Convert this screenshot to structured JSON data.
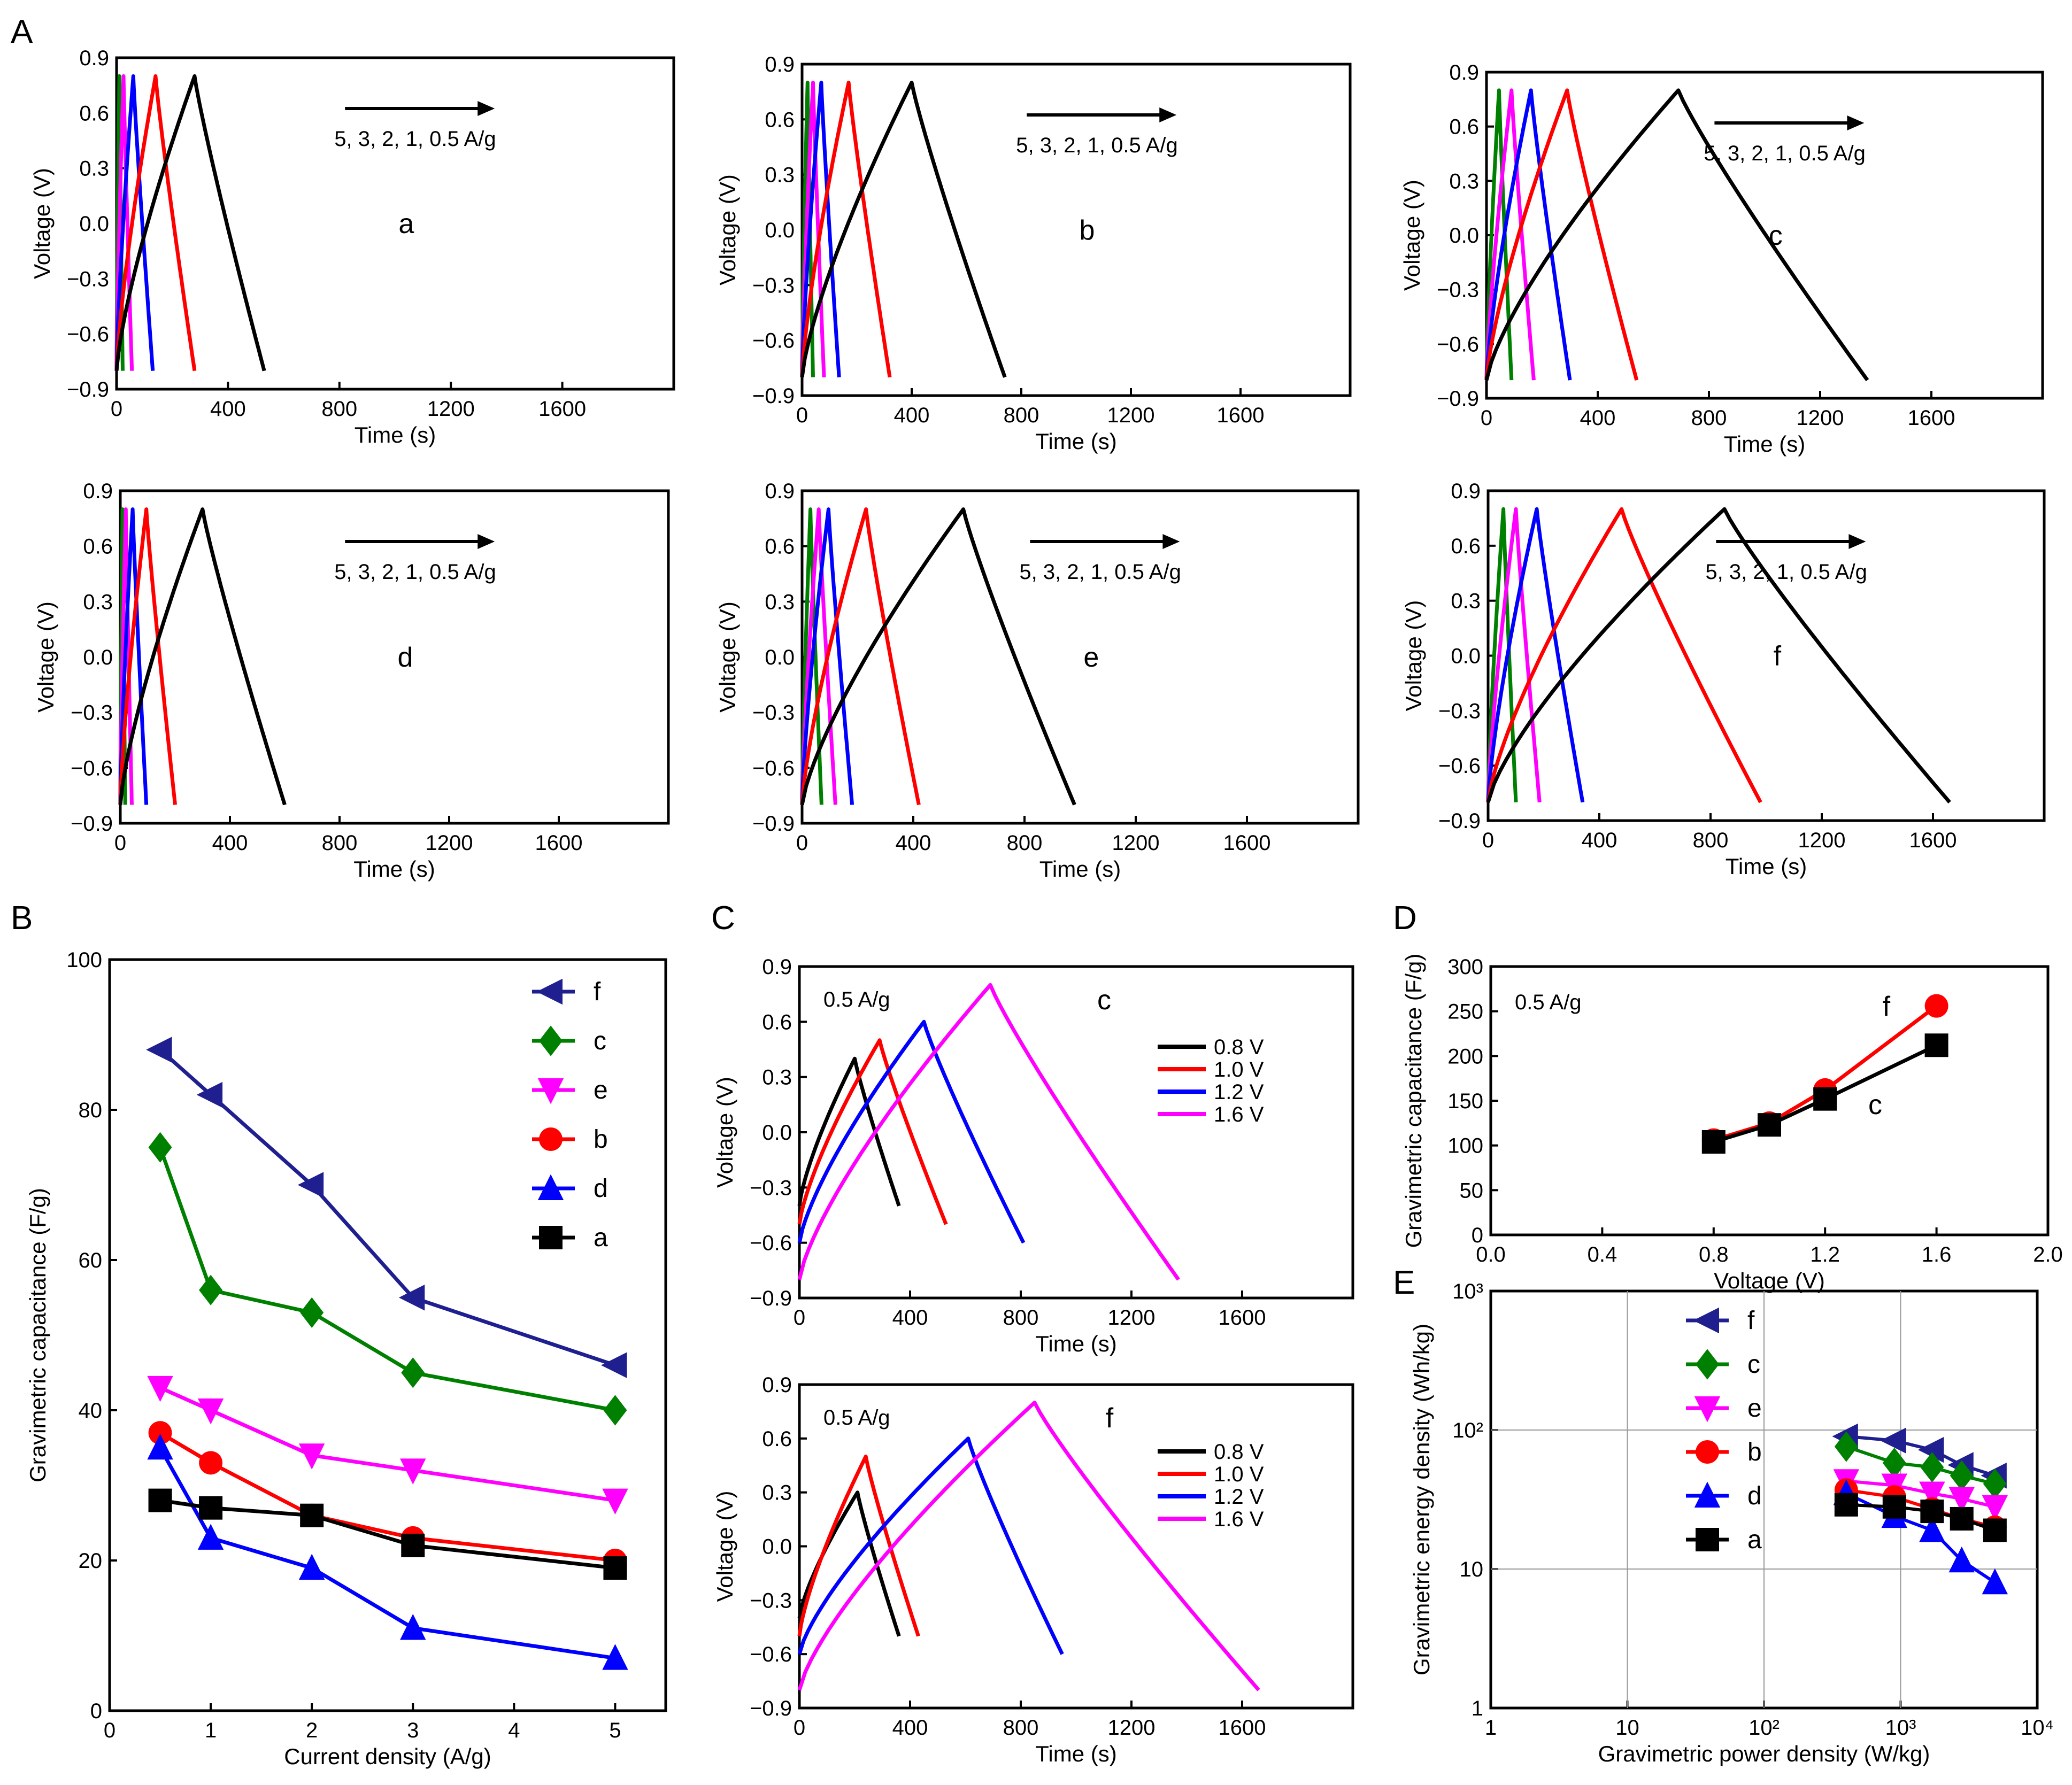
{
  "figure": {
    "panel_labels": {
      "A": "A",
      "B": "B",
      "C": "C",
      "D": "D",
      "E": "E"
    }
  },
  "colors": {
    "5": "#0070c0",
    "3": "#00b0f0",
    "black": "#000000",
    "red": "#ff0000",
    "blue": "#0000ff",
    "green": "#008000",
    "magenta": "#ff00ff",
    "navy": "#1f1f8f",
    "rate_3": "#008000",
    "rate_2": "#ff00ff",
    "rate_1": "#0000ff",
    "rate_05": "#ff0000",
    "rate_5": "#000000"
  },
  "chart_data": [
    {
      "id": "A-a",
      "type": "line",
      "title": "a",
      "xlabel": "Time (s)",
      "ylabel": "Voltage (V)",
      "xlim": [
        0,
        2000
      ],
      "ylim": [
        -0.9,
        0.9
      ],
      "xticks": [
        "0",
        "400",
        "800",
        "1200",
        "1600"
      ],
      "yticks": [
        "0.9",
        "0.6",
        "0.3",
        "0.0",
        "−0.3",
        "−0.6",
        "−0.9"
      ],
      "annotation": "5, 3, 2, 1, 0.5 A/g",
      "series": [
        {
          "name": "5 A/g",
          "color": "#008000",
          "y0": -0.8,
          "peak_t": 10,
          "end_t": 22,
          "end_v": -0.8
        },
        {
          "name": "3 A/g",
          "color": "#ff00ff",
          "y0": -0.8,
          "peak_t": 25,
          "end_t": 55,
          "end_v": -0.8
        },
        {
          "name": "2 A/g",
          "color": "#0000ff",
          "y0": -0.8,
          "peak_t": 60,
          "end_t": 130,
          "end_v": -0.8
        },
        {
          "name": "1 A/g",
          "color": "#ff0000",
          "y0": -0.8,
          "peak_t": 140,
          "end_t": 280,
          "end_v": -0.8
        },
        {
          "name": "0.5 A/g",
          "color": "#000000",
          "y0": -0.8,
          "peak_t": 280,
          "end_t": 530,
          "end_v": -0.8
        }
      ]
    },
    {
      "id": "A-b",
      "type": "line",
      "title": "b",
      "xlabel": "Time (s)",
      "ylabel": "Voltage (V)",
      "xlim": [
        0,
        2000
      ],
      "ylim": [
        -0.9,
        0.9
      ],
      "xticks": [
        "0",
        "400",
        "800",
        "1200",
        "1600"
      ],
      "yticks": [
        "0.9",
        "0.6",
        "0.3",
        "0.0",
        "−0.3",
        "−0.6",
        "−0.9"
      ],
      "annotation": "5, 3, 2, 1, 0.5 A/g",
      "series": [
        {
          "name": "5 A/g",
          "color": "#008000",
          "y0": -0.8,
          "peak_t": 20,
          "end_t": 40,
          "end_v": -0.8
        },
        {
          "name": "3 A/g",
          "color": "#ff00ff",
          "y0": -0.8,
          "peak_t": 40,
          "end_t": 80,
          "end_v": -0.8
        },
        {
          "name": "2 A/g",
          "color": "#0000ff",
          "y0": -0.8,
          "peak_t": 70,
          "end_t": 135,
          "end_v": -0.8
        },
        {
          "name": "1 A/g",
          "color": "#ff0000",
          "y0": -0.8,
          "peak_t": 170,
          "end_t": 320,
          "end_v": -0.8
        },
        {
          "name": "0.5 A/g",
          "color": "#000000",
          "y0": -0.8,
          "peak_t": 400,
          "end_t": 740,
          "end_v": -0.8
        }
      ]
    },
    {
      "id": "A-c",
      "type": "line",
      "title": "c",
      "xlabel": "Time (s)",
      "ylabel": "Voltage (V)",
      "xlim": [
        0,
        2000
      ],
      "ylim": [
        -0.9,
        0.9
      ],
      "xticks": [
        "0",
        "400",
        "800",
        "1200",
        "1600"
      ],
      "yticks": [
        "0.9",
        "0.6",
        "0.3",
        "0.0",
        "−0.3",
        "−0.6",
        "−0.9"
      ],
      "annotation": "5, 3, 2, 1, 0.5 A/g",
      "series": [
        {
          "name": "5 A/g",
          "color": "#008000",
          "y0": -0.8,
          "peak_t": 45,
          "end_t": 90,
          "end_v": -0.8
        },
        {
          "name": "3 A/g",
          "color": "#ff00ff",
          "y0": -0.8,
          "peak_t": 90,
          "end_t": 170,
          "end_v": -0.8
        },
        {
          "name": "2 A/g",
          "color": "#0000ff",
          "y0": -0.8,
          "peak_t": 160,
          "end_t": 300,
          "end_v": -0.8
        },
        {
          "name": "1 A/g",
          "color": "#ff0000",
          "y0": -0.8,
          "peak_t": 290,
          "end_t": 540,
          "end_v": -0.8
        },
        {
          "name": "0.5 A/g",
          "color": "#000000",
          "y0": -0.8,
          "peak_t": 690,
          "end_t": 1370,
          "end_v": -0.8
        }
      ]
    },
    {
      "id": "A-d",
      "type": "line",
      "title": "d",
      "xlabel": "Time (s)",
      "ylabel": "Voltage (V)",
      "xlim": [
        0,
        2000
      ],
      "ylim": [
        -0.9,
        0.9
      ],
      "xticks": [
        "0",
        "400",
        "800",
        "1200",
        "1600"
      ],
      "yticks": [
        "0.9",
        "0.6",
        "0.3",
        "0.0",
        "−0.3",
        "−0.6",
        "−0.9"
      ],
      "annotation": "5, 3, 2, 1, 0.5 A/g",
      "series": [
        {
          "name": "5 A/g",
          "color": "#008000",
          "y0": -0.8,
          "peak_t": 8,
          "end_t": 18,
          "end_v": -0.8
        },
        {
          "name": "3 A/g",
          "color": "#ff00ff",
          "y0": -0.8,
          "peak_t": 20,
          "end_t": 42,
          "end_v": -0.8
        },
        {
          "name": "2 A/g",
          "color": "#0000ff",
          "y0": -0.8,
          "peak_t": 45,
          "end_t": 95,
          "end_v": -0.8
        },
        {
          "name": "1 A/g",
          "color": "#ff0000",
          "y0": -0.8,
          "peak_t": 95,
          "end_t": 200,
          "end_v": -0.8
        },
        {
          "name": "0.5 A/g",
          "color": "#000000",
          "y0": -0.8,
          "peak_t": 300,
          "end_t": 600,
          "end_v": -0.8
        }
      ]
    },
    {
      "id": "A-e",
      "type": "line",
      "title": "e",
      "xlabel": "Time (s)",
      "ylabel": "Voltage (V)",
      "xlim": [
        0,
        2000
      ],
      "ylim": [
        -0.9,
        0.9
      ],
      "xticks": [
        "0",
        "400",
        "800",
        "1200",
        "1600"
      ],
      "yticks": [
        "0.9",
        "0.6",
        "0.3",
        "0.0",
        "−0.3",
        "−0.6",
        "−0.9"
      ],
      "annotation": "5, 3, 2, 1, 0.5 A/g",
      "series": [
        {
          "name": "5 A/g",
          "color": "#008000",
          "y0": -0.8,
          "peak_t": 30,
          "end_t": 70,
          "end_v": -0.8
        },
        {
          "name": "3 A/g",
          "color": "#ff00ff",
          "y0": -0.8,
          "peak_t": 60,
          "end_t": 120,
          "end_v": -0.8
        },
        {
          "name": "2 A/g",
          "color": "#0000ff",
          "y0": -0.8,
          "peak_t": 95,
          "end_t": 180,
          "end_v": -0.8
        },
        {
          "name": "1 A/g",
          "color": "#ff0000",
          "y0": -0.8,
          "peak_t": 230,
          "end_t": 420,
          "end_v": -0.8
        },
        {
          "name": "0.5 A/g",
          "color": "#000000",
          "y0": -0.8,
          "peak_t": 580,
          "end_t": 980,
          "end_v": -0.8
        }
      ]
    },
    {
      "id": "A-f",
      "type": "line",
      "title": "f",
      "xlabel": "Time (s)",
      "ylabel": "Voltage (V)",
      "xlim": [
        0,
        2000
      ],
      "ylim": [
        -0.9,
        0.9
      ],
      "xticks": [
        "0",
        "400",
        "800",
        "1200",
        "1600"
      ],
      "yticks": [
        "0.9",
        "0.6",
        "0.3",
        "0.0",
        "−0.3",
        "−0.6",
        "−0.9"
      ],
      "annotation": "5, 3, 2, 1, 0.5 A/g",
      "series": [
        {
          "name": "5 A/g",
          "color": "#008000",
          "y0": -0.8,
          "peak_t": 55,
          "end_t": 100,
          "end_v": -0.8
        },
        {
          "name": "3 A/g",
          "color": "#ff00ff",
          "y0": -0.8,
          "peak_t": 100,
          "end_t": 185,
          "end_v": -0.8
        },
        {
          "name": "2 A/g",
          "color": "#0000ff",
          "y0": -0.8,
          "peak_t": 175,
          "end_t": 340,
          "end_v": -0.8
        },
        {
          "name": "1 A/g",
          "color": "#ff0000",
          "y0": -0.8,
          "peak_t": 480,
          "end_t": 980,
          "end_v": -0.8
        },
        {
          "name": "0.5 A/g",
          "color": "#000000",
          "y0": -0.8,
          "peak_t": 850,
          "end_t": 1660,
          "end_v": -0.8
        }
      ]
    },
    {
      "id": "B",
      "type": "line",
      "xlabel": "Current density (A/g)",
      "ylabel": "Gravimetric capacitance (F/g)",
      "xlim": [
        0,
        5.5
      ],
      "ylim": [
        0,
        100
      ],
      "xticks": [
        "0",
        "1",
        "2",
        "3",
        "4",
        "5"
      ],
      "yticks": [
        "100",
        "80",
        "60",
        "40",
        "20",
        "0"
      ],
      "x": [
        0.5,
        1,
        2,
        3,
        5
      ],
      "series": [
        {
          "name": "f",
          "color": "#1f1f8f",
          "marker": "triangle-left",
          "values": [
            88,
            82,
            70,
            55,
            46
          ]
        },
        {
          "name": "c",
          "color": "#008000",
          "marker": "diamond",
          "values": [
            75,
            56,
            53,
            45,
            40
          ]
        },
        {
          "name": "e",
          "color": "#ff00ff",
          "marker": "triangle-down",
          "values": [
            43,
            40,
            34,
            32,
            28
          ]
        },
        {
          "name": "b",
          "color": "#ff0000",
          "marker": "circle",
          "values": [
            37,
            33,
            26,
            23,
            20
          ]
        },
        {
          "name": "d",
          "color": "#0000ff",
          "marker": "triangle-up",
          "values": [
            35,
            23,
            19,
            11,
            7
          ]
        },
        {
          "name": "a",
          "color": "#000000",
          "marker": "square",
          "values": [
            28,
            27,
            26,
            22,
            19
          ]
        }
      ]
    },
    {
      "id": "C-c",
      "type": "line",
      "title": "c",
      "note": "0.5 A/g",
      "xlabel": "Time (s)",
      "ylabel": "Voltage (V)",
      "xlim": [
        0,
        2000
      ],
      "ylim": [
        -0.9,
        0.9
      ],
      "xticks": [
        "0",
        "400",
        "800",
        "1200",
        "1600"
      ],
      "yticks": [
        "0.9",
        "0.6",
        "0.3",
        "0.0",
        "−0.3",
        "−0.6",
        "−0.9"
      ],
      "series": [
        {
          "name": "0.8 V",
          "color": "#000000",
          "y0": -0.4,
          "peak_v": 0.4,
          "peak_t": 200,
          "end_t": 360,
          "end_v": -0.4
        },
        {
          "name": "1.0 V",
          "color": "#ff0000",
          "y0": -0.5,
          "peak_v": 0.5,
          "peak_t": 290,
          "end_t": 530,
          "end_v": -0.5
        },
        {
          "name": "1.2 V",
          "color": "#0000ff",
          "y0": -0.6,
          "peak_v": 0.6,
          "peak_t": 450,
          "end_t": 810,
          "end_v": -0.6
        },
        {
          "name": "1.6 V",
          "color": "#ff00ff",
          "y0": -0.8,
          "peak_v": 0.8,
          "peak_t": 690,
          "end_t": 1370,
          "end_v": -0.8
        }
      ]
    },
    {
      "id": "C-f",
      "type": "line",
      "title": "f",
      "note": "0.5 A/g",
      "xlabel": "Time (s)",
      "ylabel": "Voltage (V)",
      "xlim": [
        0,
        2000
      ],
      "ylim": [
        -0.9,
        0.9
      ],
      "xticks": [
        "0",
        "400",
        "800",
        "1200",
        "1600"
      ],
      "yticks": [
        "0.9",
        "0.6",
        "0.3",
        "0.0",
        "−0.3",
        "−0.6",
        "−0.9"
      ],
      "series": [
        {
          "name": "0.8 V",
          "color": "#000000",
          "y0": -0.4,
          "peak_v": 0.3,
          "peak_t": 210,
          "end_t": 360,
          "end_v": -0.5
        },
        {
          "name": "1.0 V",
          "color": "#ff0000",
          "y0": -0.5,
          "peak_v": 0.5,
          "peak_t": 240,
          "end_t": 430,
          "end_v": -0.5
        },
        {
          "name": "1.2 V",
          "color": "#0000ff",
          "y0": -0.6,
          "peak_v": 0.6,
          "peak_t": 610,
          "end_t": 950,
          "end_v": -0.6
        },
        {
          "name": "1.6 V",
          "color": "#ff00ff",
          "y0": -0.8,
          "peak_v": 0.8,
          "peak_t": 850,
          "end_t": 1660,
          "end_v": -0.8
        }
      ]
    },
    {
      "id": "D",
      "type": "line",
      "note": "0.5 A/g",
      "xlabel": "Voltage (V)",
      "ylabel": "Gravimetric capacitance (F/g)",
      "xlim": [
        0,
        2.0
      ],
      "ylim": [
        0,
        300
      ],
      "xticks": [
        "0.0",
        "0.4",
        "0.8",
        "1.2",
        "1.6",
        "2.0"
      ],
      "yticks": [
        "300",
        "250",
        "200",
        "150",
        "100",
        "50",
        "0"
      ],
      "x": [
        0.8,
        1.0,
        1.2,
        1.6
      ],
      "series": [
        {
          "name": "f",
          "color": "#ff0000",
          "marker": "circle",
          "values": [
            106,
            125,
            162,
            256
          ]
        },
        {
          "name": "c",
          "color": "#000000",
          "marker": "square",
          "values": [
            104,
            123,
            152,
            212
          ]
        }
      ]
    },
    {
      "id": "E",
      "type": "scatter",
      "xlabel": "Gravimetric power density (W/kg)",
      "ylabel": "Gravimetric energy density (Wh/kg)",
      "xscale": "log",
      "yscale": "log",
      "xlim": [
        1,
        10000
      ],
      "ylim": [
        1,
        1000
      ],
      "xticks": [
        "1",
        "10",
        "10²",
        "10³",
        "10⁴"
      ],
      "yticks": [
        "10³",
        "10²",
        "10",
        "1"
      ],
      "series": [
        {
          "name": "f",
          "color": "#1f1f8f",
          "marker": "triangle-left",
          "points": [
            [
              400,
              90
            ],
            [
              900,
              84
            ],
            [
              1700,
              72
            ],
            [
              2800,
              56
            ],
            [
              4900,
              47
            ]
          ]
        },
        {
          "name": "c",
          "color": "#008000",
          "marker": "diamond",
          "points": [
            [
              400,
              76
            ],
            [
              900,
              58
            ],
            [
              1700,
              54
            ],
            [
              2800,
              47
            ],
            [
              4900,
              41
            ]
          ]
        },
        {
          "name": "e",
          "color": "#ff00ff",
          "marker": "triangle-down",
          "points": [
            [
              400,
              43
            ],
            [
              900,
              40
            ],
            [
              1700,
              35
            ],
            [
              2800,
              32
            ],
            [
              4900,
              28
            ]
          ]
        },
        {
          "name": "b",
          "color": "#ff0000",
          "marker": "circle",
          "points": [
            [
              400,
              37
            ],
            [
              900,
              33
            ],
            [
              1700,
              27
            ],
            [
              2800,
              23
            ],
            [
              4900,
              20
            ]
          ]
        },
        {
          "name": "d",
          "color": "#0000ff",
          "marker": "triangle-up",
          "points": [
            [
              400,
              35
            ],
            [
              900,
              24
            ],
            [
              1700,
              19
            ],
            [
              2800,
              11.5
            ],
            [
              4900,
              8
            ]
          ]
        },
        {
          "name": "a",
          "color": "#000000",
          "marker": "square",
          "points": [
            [
              400,
              29
            ],
            [
              900,
              28
            ],
            [
              1700,
              26
            ],
            [
              2800,
              23
            ],
            [
              4900,
              19
            ]
          ]
        }
      ]
    }
  ]
}
